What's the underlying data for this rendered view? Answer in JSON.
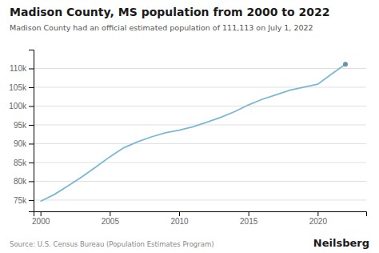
{
  "chart_data": {
    "type": "line",
    "title": "Madison County, MS population from 2000 to 2022",
    "subtitle": "Madison County had an official estimated population of 111,113 on July 1, 2022",
    "source": "Source: U.S. Census Bureau (Population Estimates Program)",
    "branding": "Neilsberg",
    "x": [
      2000,
      2001,
      2002,
      2003,
      2004,
      2005,
      2006,
      2007,
      2008,
      2009,
      2010,
      2011,
      2012,
      2013,
      2014,
      2015,
      2016,
      2017,
      2018,
      2019,
      2020,
      2021,
      2022
    ],
    "values": [
      74674,
      76500,
      78800,
      81200,
      83800,
      86500,
      88900,
      90500,
      91800,
      92900,
      93600,
      94500,
      95700,
      97000,
      98500,
      100300,
      101800,
      103000,
      104200,
      105000,
      105800,
      108500,
      111113
    ],
    "color": "#7ab8d4",
    "xlim": [
      1999.5,
      2023.5
    ],
    "xticks": [
      2000,
      2005,
      2010,
      2015,
      2020
    ],
    "ylim": [
      72000,
      115000
    ],
    "yticks": [
      {
        "value": 75000,
        "label": "75k"
      },
      {
        "value": 80000,
        "label": "80k"
      },
      {
        "value": 85000,
        "label": "85k"
      },
      {
        "value": 90000,
        "label": "90k"
      },
      {
        "value": 95000,
        "label": "95k"
      },
      {
        "value": 100000,
        "label": "100k"
      },
      {
        "value": 105000,
        "label": "105k"
      },
      {
        "value": 110000,
        "label": "110k"
      }
    ],
    "grid": true
  }
}
